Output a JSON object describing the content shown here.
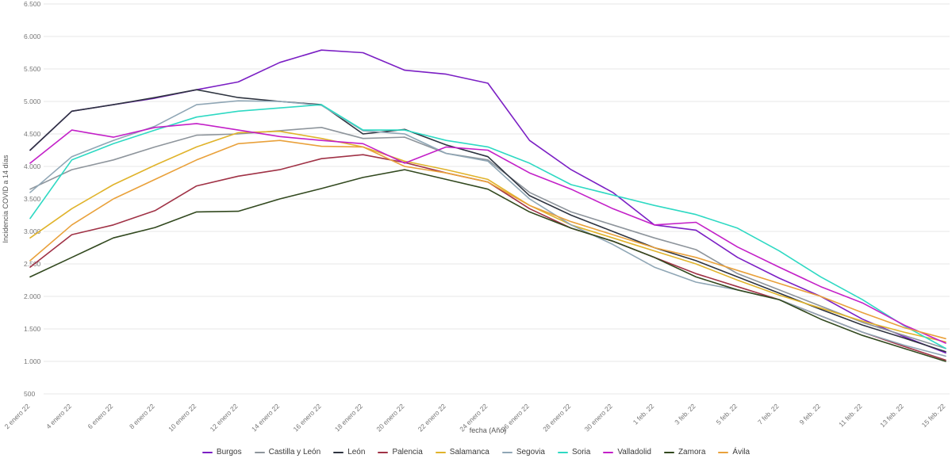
{
  "chart": {
    "y_axis_title": "Incidencia COVID a 14 días",
    "x_axis_title": "fecha (Año)"
  },
  "chart_data": {
    "type": "line",
    "title": "",
    "xlabel": "fecha (Año)",
    "ylabel": "Incidencia COVID a 14 días",
    "ylim": [
      500,
      6500
    ],
    "grid": true,
    "legend_position": "bottom",
    "yticks": [
      {
        "value": 6500,
        "label": "6.500"
      },
      {
        "value": 6000,
        "label": "6.000"
      },
      {
        "value": 5500,
        "label": "5.500"
      },
      {
        "value": 5000,
        "label": "5.000"
      },
      {
        "value": 4500,
        "label": "4.500"
      },
      {
        "value": 4000,
        "label": "4.000"
      },
      {
        "value": 3500,
        "label": "3.500"
      },
      {
        "value": 3000,
        "label": "3.000"
      },
      {
        "value": 2500,
        "label": "2.500"
      },
      {
        "value": 2000,
        "label": "2.000"
      },
      {
        "value": 1500,
        "label": "1.500"
      },
      {
        "value": 1000,
        "label": "1.000"
      },
      {
        "value": 500,
        "label": "500"
      }
    ],
    "categories": [
      "2 enero 22",
      "4 enero 22",
      "6 enero 22",
      "8 enero 22",
      "10 enero 22",
      "12 enero 22",
      "14 enero 22",
      "16 enero 22",
      "18 enero 22",
      "20 enero 22",
      "22 enero 22",
      "24 enero 22",
      "26 enero 22",
      "28 enero 22",
      "30 enero 22",
      "1 feb. 22",
      "3 feb. 22",
      "5 feb. 22",
      "7 feb. 22",
      "9 feb. 22",
      "11 feb. 22",
      "13 feb. 22",
      "15 feb. 22"
    ],
    "series": [
      {
        "name": "Burgos",
        "color": "#7b1fc4",
        "values": [
          4250,
          4850,
          4950,
          5050,
          5180,
          5300,
          5600,
          5790,
          5750,
          5480,
          5420,
          5280,
          4400,
          3950,
          3600,
          3100,
          3020,
          2600,
          2280,
          2000,
          1650,
          1380,
          1130
        ]
      },
      {
        "name": "Castilla y León",
        "color": "#8e959c",
        "values": [
          3650,
          3950,
          4100,
          4300,
          4480,
          4500,
          4550,
          4600,
          4430,
          4450,
          4200,
          4100,
          3600,
          3300,
          3100,
          2900,
          2720,
          2350,
          2100,
          1850,
          1600,
          1400,
          1200
        ]
      },
      {
        "name": "León",
        "color": "#2e3440",
        "values": [
          4250,
          4850,
          4950,
          5060,
          5180,
          5060,
          5000,
          4950,
          4500,
          4570,
          4330,
          4150,
          3550,
          3250,
          3000,
          2750,
          2550,
          2300,
          2050,
          1800,
          1560,
          1360,
          1150
        ]
      },
      {
        "name": "Palencia",
        "color": "#a03246",
        "values": [
          2450,
          2950,
          3100,
          3320,
          3700,
          3850,
          3950,
          4120,
          4180,
          4060,
          3900,
          3760,
          3350,
          3050,
          2850,
          2600,
          2350,
          2150,
          1950,
          1700,
          1450,
          1230,
          1020
        ]
      },
      {
        "name": "Salamanca",
        "color": "#e0b32b",
        "values": [
          2900,
          3350,
          3720,
          4020,
          4300,
          4520,
          4540,
          4430,
          4300,
          4080,
          3950,
          3800,
          3400,
          3100,
          2900,
          2700,
          2500,
          2250,
          2020,
          1820,
          1620,
          1450,
          1300
        ]
      },
      {
        "name": "Segovia",
        "color": "#8fa6b5",
        "values": [
          3600,
          4150,
          4400,
          4620,
          4950,
          5010,
          5000,
          4940,
          4550,
          4500,
          4200,
          4080,
          3500,
          3100,
          2800,
          2450,
          2220,
          2100,
          1950,
          1700,
          1450,
          1250,
          1080
        ]
      },
      {
        "name": "Soria",
        "color": "#2ed9c3",
        "values": [
          3200,
          4100,
          4350,
          4560,
          4760,
          4850,
          4900,
          4950,
          4560,
          4560,
          4400,
          4300,
          4050,
          3720,
          3560,
          3400,
          3260,
          3050,
          2700,
          2300,
          1950,
          1550,
          1200
        ]
      },
      {
        "name": "Valladolid",
        "color": "#c320c8",
        "values": [
          4050,
          4560,
          4450,
          4600,
          4660,
          4560,
          4460,
          4400,
          4350,
          4050,
          4300,
          4250,
          3900,
          3650,
          3350,
          3100,
          3140,
          2760,
          2450,
          2150,
          1900,
          1560,
          1280
        ]
      },
      {
        "name": "Zamora",
        "color": "#32491f",
        "values": [
          2300,
          2600,
          2900,
          3060,
          3300,
          3310,
          3500,
          3660,
          3830,
          3950,
          3800,
          3650,
          3300,
          3050,
          2850,
          2600,
          2300,
          2100,
          1950,
          1650,
          1400,
          1200,
          1000
        ]
      },
      {
        "name": "Ávila",
        "color": "#e9a13b",
        "values": [
          2550,
          3100,
          3500,
          3800,
          4100,
          4350,
          4400,
          4310,
          4300,
          4000,
          3900,
          3760,
          3400,
          3150,
          2950,
          2750,
          2600,
          2400,
          2200,
          2000,
          1750,
          1520,
          1350
        ]
      }
    ]
  }
}
